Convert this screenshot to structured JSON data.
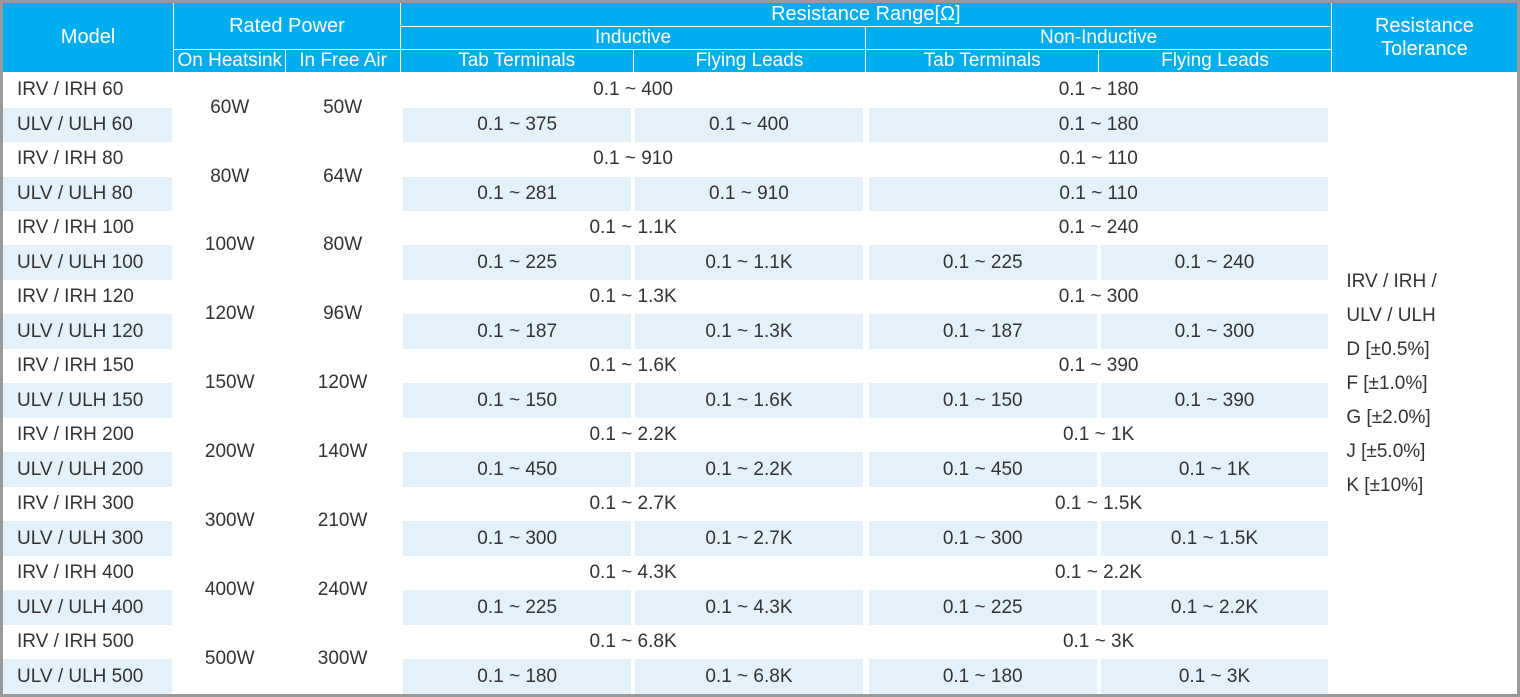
{
  "header": {
    "model": "Model",
    "rated_power": "Rated Power",
    "on_heatsink": "On Heatsink",
    "in_free_air": "In Free Air",
    "resistance_range": "Resistance Range[Ω]",
    "inductive": "Inductive",
    "non_inductive": "Non-Inductive",
    "tab_terminals": "Tab Terminals",
    "flying_leads": "Flying Leads",
    "tolerance": "Resistance Tolerance"
  },
  "colors": {
    "header_bg": "#00aeef",
    "header_fg": "#ffffff",
    "row_alt_bg": "#e5f1fa",
    "row_bg": "#ffffff",
    "text": "#333333",
    "border": "#999999"
  },
  "groups": [
    {
      "heat": "60W",
      "air": "50W",
      "irv": {
        "model": "IRV / IRH 60",
        "ind": "0.1 ~ 400",
        "nind": "0.1 ~ 180"
      },
      "ulv": {
        "model": "ULV / ULH 60",
        "itab": "0.1 ~ 375",
        "ifly": "0.1 ~ 400",
        "nind": "0.1 ~ 180"
      }
    },
    {
      "heat": "80W",
      "air": "64W",
      "irv": {
        "model": "IRV / IRH 80",
        "ind": "0.1 ~ 910",
        "nind": "0.1 ~ 110"
      },
      "ulv": {
        "model": "ULV / ULH 80",
        "itab": "0.1 ~ 281",
        "ifly": "0.1 ~ 910",
        "nind": "0.1 ~ 110"
      }
    },
    {
      "heat": "100W",
      "air": "80W",
      "irv": {
        "model": "IRV / IRH 100",
        "ind": "0.1 ~ 1.1K",
        "nind": "0.1 ~ 240"
      },
      "ulv": {
        "model": "ULV / ULH 100",
        "itab": "0.1 ~ 225",
        "ifly": "0.1 ~ 1.1K",
        "ntab": "0.1 ~ 225",
        "nfly": "0.1 ~ 240"
      }
    },
    {
      "heat": "120W",
      "air": "96W",
      "irv": {
        "model": "IRV / IRH 120",
        "ind": "0.1 ~ 1.3K",
        "nind": "0.1 ~ 300"
      },
      "ulv": {
        "model": "ULV / ULH 120",
        "itab": "0.1 ~ 187",
        "ifly": "0.1 ~ 1.3K",
        "ntab": "0.1 ~ 187",
        "nfly": "0.1 ~ 300"
      }
    },
    {
      "heat": "150W",
      "air": "120W",
      "irv": {
        "model": "IRV / IRH 150",
        "ind": "0.1 ~ 1.6K",
        "nind": "0.1 ~ 390"
      },
      "ulv": {
        "model": "ULV / ULH 150",
        "itab": "0.1 ~ 150",
        "ifly": "0.1 ~ 1.6K",
        "ntab": "0.1 ~ 150",
        "nfly": "0.1 ~ 390"
      }
    },
    {
      "heat": "200W",
      "air": "140W",
      "irv": {
        "model": "IRV / IRH 200",
        "ind": "0.1 ~ 2.2K",
        "nind": "0.1 ~ 1K"
      },
      "ulv": {
        "model": "ULV / ULH 200",
        "itab": "0.1 ~ 450",
        "ifly": "0.1 ~ 2.2K",
        "ntab": "0.1 ~ 450",
        "nfly": "0.1 ~ 1K"
      }
    },
    {
      "heat": "300W",
      "air": "210W",
      "irv": {
        "model": "IRV / IRH 300",
        "ind": "0.1 ~ 2.7K",
        "nind": "0.1 ~ 1.5K"
      },
      "ulv": {
        "model": "ULV / ULH 300",
        "itab": "0.1 ~ 300",
        "ifly": "0.1 ~ 2.7K",
        "ntab": "0.1 ~ 300",
        "nfly": "0.1 ~ 1.5K"
      }
    },
    {
      "heat": "400W",
      "air": "240W",
      "irv": {
        "model": "IRV / IRH 400",
        "ind": "0.1 ~ 4.3K",
        "nind": "0.1 ~ 2.2K"
      },
      "ulv": {
        "model": "ULV / ULH 400",
        "itab": "0.1 ~ 225",
        "ifly": "0.1 ~ 4.3K",
        "ntab": "0.1 ~ 225",
        "nfly": "0.1 ~ 2.2K"
      }
    },
    {
      "heat": "500W",
      "air": "300W",
      "irv": {
        "model": "IRV / IRH 500",
        "ind": "0.1 ~ 6.8K",
        "nind": "0.1 ~ 3K"
      },
      "ulv": {
        "model": "ULV / ULH 500",
        "itab": "0.1 ~ 180",
        "ifly": "0.1 ~ 6.8K",
        "ntab": "0.1 ~ 180",
        "nfly": "0.1 ~ 3K"
      }
    }
  ],
  "tolerance_lines": [
    "IRV / IRH /",
    "ULV / ULH",
    "D [±0.5%]",
    "F [±1.0%]",
    "G [±2.0%]",
    "J [±5.0%]",
    "K [±10%]"
  ]
}
